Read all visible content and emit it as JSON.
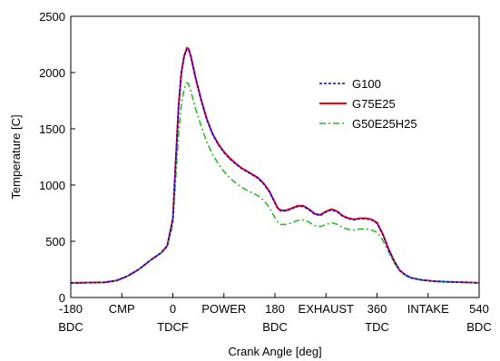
{
  "chart_data": {
    "type": "line",
    "xlabel": "Crank Angle [deg]",
    "ylabel": "Temperature [C]",
    "xlim": [
      -180,
      540
    ],
    "ylim": [
      0,
      2500
    ],
    "yticks": [
      0,
      500,
      1000,
      1500,
      2000,
      2500
    ],
    "xtick_labels": [
      {
        "x": -180,
        "line1": "-180",
        "line2": "BDC"
      },
      {
        "x": -90,
        "line1": "CMP",
        "line2": ""
      },
      {
        "x": 0,
        "line1": "0",
        "line2": "TDCF"
      },
      {
        "x": 90,
        "line1": "POWER",
        "line2": ""
      },
      {
        "x": 180,
        "line1": "180",
        "line2": "BDC"
      },
      {
        "x": 270,
        "line1": "EXHAUST",
        "line2": ""
      },
      {
        "x": 360,
        "line1": "360",
        "line2": "TDC"
      },
      {
        "x": 450,
        "line1": "INTAKE",
        "line2": ""
      },
      {
        "x": 540,
        "line1": "540",
        "line2": "BDC"
      }
    ],
    "grid": false,
    "legend_position": "upper-right",
    "series": [
      {
        "name": "G100",
        "color": "#0000ff",
        "dash": "dotted",
        "points": [
          [
            -180,
            130
          ],
          [
            -150,
            132
          ],
          [
            -120,
            135
          ],
          [
            -100,
            150
          ],
          [
            -80,
            190
          ],
          [
            -60,
            250
          ],
          [
            -40,
            330
          ],
          [
            -20,
            400
          ],
          [
            -10,
            460
          ],
          [
            0,
            700
          ],
          [
            5,
            1200
          ],
          [
            10,
            1700
          ],
          [
            15,
            2000
          ],
          [
            20,
            2150
          ],
          [
            25,
            2210
          ],
          [
            28,
            2200
          ],
          [
            32,
            2130
          ],
          [
            40,
            1950
          ],
          [
            50,
            1750
          ],
          [
            60,
            1580
          ],
          [
            70,
            1450
          ],
          [
            80,
            1360
          ],
          [
            90,
            1290
          ],
          [
            100,
            1235
          ],
          [
            110,
            1190
          ],
          [
            120,
            1150
          ],
          [
            130,
            1120
          ],
          [
            140,
            1090
          ],
          [
            150,
            1060
          ],
          [
            160,
            1010
          ],
          [
            170,
            940
          ],
          [
            180,
            840
          ],
          [
            185,
            790
          ],
          [
            190,
            770
          ],
          [
            200,
            770
          ],
          [
            210,
            790
          ],
          [
            220,
            810
          ],
          [
            230,
            810
          ],
          [
            240,
            780
          ],
          [
            250,
            740
          ],
          [
            260,
            730
          ],
          [
            270,
            760
          ],
          [
            280,
            780
          ],
          [
            290,
            760
          ],
          [
            300,
            720
          ],
          [
            310,
            700
          ],
          [
            320,
            690
          ],
          [
            330,
            700
          ],
          [
            340,
            700
          ],
          [
            350,
            690
          ],
          [
            360,
            660
          ],
          [
            370,
            560
          ],
          [
            380,
            430
          ],
          [
            390,
            320
          ],
          [
            400,
            240
          ],
          [
            410,
            200
          ],
          [
            420,
            175
          ],
          [
            440,
            155
          ],
          [
            460,
            145
          ],
          [
            480,
            140
          ],
          [
            500,
            137
          ],
          [
            520,
            134
          ],
          [
            540,
            130
          ]
        ]
      },
      {
        "name": "G75E25",
        "color": "#ff0000",
        "dash": "solid",
        "points": [
          [
            -180,
            130
          ],
          [
            -150,
            132
          ],
          [
            -120,
            135
          ],
          [
            -100,
            150
          ],
          [
            -80,
            190
          ],
          [
            -60,
            250
          ],
          [
            -40,
            330
          ],
          [
            -20,
            400
          ],
          [
            -10,
            460
          ],
          [
            0,
            700
          ],
          [
            5,
            1200
          ],
          [
            10,
            1700
          ],
          [
            15,
            2000
          ],
          [
            20,
            2150
          ],
          [
            25,
            2220
          ],
          [
            28,
            2210
          ],
          [
            32,
            2140
          ],
          [
            40,
            1955
          ],
          [
            50,
            1755
          ],
          [
            60,
            1585
          ],
          [
            70,
            1455
          ],
          [
            80,
            1365
          ],
          [
            90,
            1295
          ],
          [
            100,
            1240
          ],
          [
            110,
            1195
          ],
          [
            120,
            1155
          ],
          [
            130,
            1125
          ],
          [
            140,
            1095
          ],
          [
            150,
            1065
          ],
          [
            160,
            1015
          ],
          [
            170,
            945
          ],
          [
            180,
            845
          ],
          [
            185,
            795
          ],
          [
            190,
            775
          ],
          [
            200,
            775
          ],
          [
            210,
            795
          ],
          [
            220,
            815
          ],
          [
            230,
            815
          ],
          [
            240,
            785
          ],
          [
            250,
            745
          ],
          [
            260,
            735
          ],
          [
            270,
            765
          ],
          [
            280,
            785
          ],
          [
            290,
            765
          ],
          [
            300,
            725
          ],
          [
            310,
            705
          ],
          [
            320,
            695
          ],
          [
            330,
            705
          ],
          [
            340,
            705
          ],
          [
            350,
            695
          ],
          [
            360,
            665
          ],
          [
            370,
            565
          ],
          [
            380,
            435
          ],
          [
            390,
            325
          ],
          [
            400,
            242
          ],
          [
            410,
            200
          ],
          [
            420,
            175
          ],
          [
            440,
            155
          ],
          [
            460,
            145
          ],
          [
            480,
            140
          ],
          [
            500,
            137
          ],
          [
            520,
            134
          ],
          [
            540,
            130
          ]
        ]
      },
      {
        "name": "G50E25H25",
        "color": "#2eb82e",
        "dash": "dashdot",
        "points": [
          [
            -180,
            130
          ],
          [
            -150,
            132
          ],
          [
            -120,
            135
          ],
          [
            -100,
            150
          ],
          [
            -80,
            190
          ],
          [
            -60,
            250
          ],
          [
            -40,
            330
          ],
          [
            -20,
            400
          ],
          [
            -10,
            450
          ],
          [
            0,
            650
          ],
          [
            5,
            1050
          ],
          [
            10,
            1450
          ],
          [
            15,
            1720
          ],
          [
            20,
            1860
          ],
          [
            25,
            1910
          ],
          [
            28,
            1895
          ],
          [
            32,
            1830
          ],
          [
            40,
            1680
          ],
          [
            50,
            1520
          ],
          [
            60,
            1380
          ],
          [
            70,
            1270
          ],
          [
            80,
            1190
          ],
          [
            90,
            1120
          ],
          [
            100,
            1065
          ],
          [
            110,
            1020
          ],
          [
            120,
            985
          ],
          [
            130,
            955
          ],
          [
            140,
            930
          ],
          [
            150,
            905
          ],
          [
            160,
            865
          ],
          [
            170,
            800
          ],
          [
            180,
            710
          ],
          [
            185,
            670
          ],
          [
            190,
            650
          ],
          [
            200,
            650
          ],
          [
            210,
            665
          ],
          [
            220,
            685
          ],
          [
            230,
            690
          ],
          [
            240,
            670
          ],
          [
            250,
            640
          ],
          [
            260,
            630
          ],
          [
            270,
            650
          ],
          [
            280,
            665
          ],
          [
            290,
            650
          ],
          [
            300,
            620
          ],
          [
            310,
            605
          ],
          [
            320,
            600
          ],
          [
            330,
            610
          ],
          [
            340,
            610
          ],
          [
            350,
            600
          ],
          [
            360,
            580
          ],
          [
            370,
            510
          ],
          [
            380,
            410
          ],
          [
            390,
            310
          ],
          [
            400,
            235
          ],
          [
            410,
            195
          ],
          [
            420,
            172
          ],
          [
            440,
            153
          ],
          [
            460,
            144
          ],
          [
            480,
            139
          ],
          [
            500,
            136
          ],
          [
            520,
            133
          ],
          [
            540,
            130
          ]
        ]
      }
    ]
  }
}
